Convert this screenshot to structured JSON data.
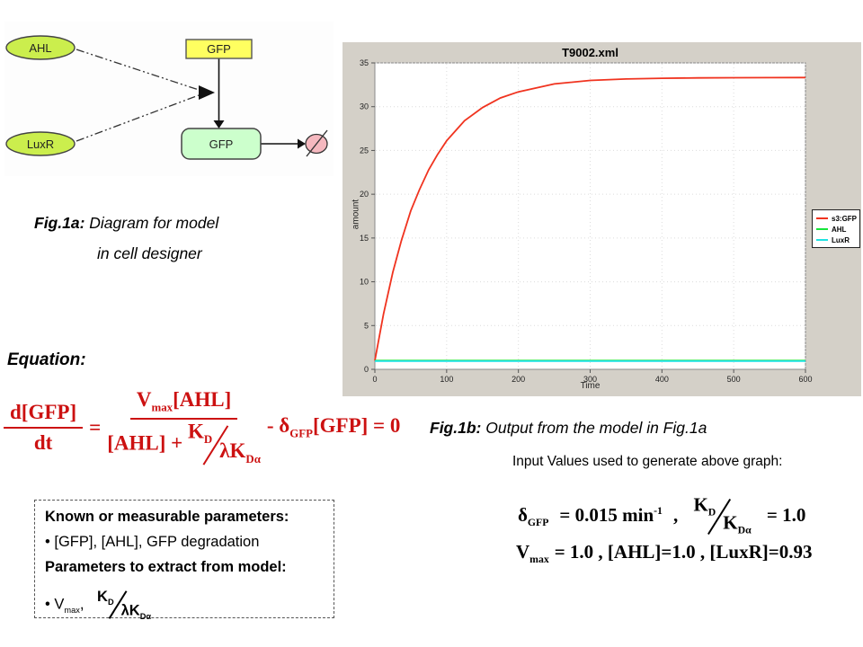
{
  "diagram": {
    "node_ahl": "AHL",
    "node_luxr": "LuxR",
    "node_gfp_gene": "GFP",
    "node_gfp_protein": "GFP",
    "colors": {
      "species_fill": "#cbee4d",
      "gene_fill": "#ffff60",
      "protein_fill": "#ccffcc",
      "degradation_fill": "#f5b8bf"
    }
  },
  "fig1a": {
    "label": "Fig.1a:",
    "text": " Diagram for model",
    "text2": "in cell designer"
  },
  "fig1b": {
    "label": "Fig.1b:",
    "text": " Output from the model in Fig.1a"
  },
  "equation_heading": "Equation:",
  "equation": {
    "color": "#cc1111",
    "lhs_num": "d[GFP]",
    "lhs_den": "dt",
    "equals": "=",
    "num_v": "V",
    "num_v_sub": "max",
    "num_tail": "[AHL]",
    "den_pre": "[AHL] + ",
    "kd": "K",
    "kd_sub": "D",
    "lkd": "λK",
    "lkd_sub": "Dα",
    "minus": "- ",
    "delta": "δ",
    "delta_sub": "GFP",
    "tail": "[GFP] = 0"
  },
  "params_box": {
    "heading1": "Known or measurable parameters:",
    "item1": "• [GFP], [AHL], GFP degradation",
    "heading2": "Parameters to extract from model:",
    "item2_pre": "• V",
    "item2_sub": "max",
    "item2_comma": ",",
    "kd": "K",
    "kd_sub": "D",
    "lkd": "λK",
    "lkd_sub": "Dα"
  },
  "input_values": {
    "heading": "Input Values used to generate above graph:",
    "delta": "δ",
    "delta_sub": "GFP",
    "delta_val": "= 0.015 min",
    "delta_exp": "-1",
    "comma1": ",",
    "kd": "K",
    "kd_sub": "D",
    "kda": "K",
    "kda_sub": "Dα",
    "kd_val": "= 1.0",
    "vmax": "V",
    "vmax_sub": "max",
    "line2_rest": "= 1.0 ,  [AHL]=1.0 ,  [LuxR]=0.93"
  },
  "chart_data": {
    "type": "line",
    "title": "T9002.xml",
    "xlabel": "Time",
    "ylabel": "amount",
    "xlim": [
      0,
      600
    ],
    "ylim": [
      0,
      35
    ],
    "xticks": [
      0,
      100,
      200,
      300,
      400,
      500,
      600
    ],
    "yticks": [
      0,
      5,
      10,
      15,
      20,
      25,
      30,
      35
    ],
    "grid": true,
    "legend_position": "right",
    "frame_color": "#d4d0c8",
    "plot_bg": "#ffffff",
    "series": [
      {
        "name": "s3:GFP",
        "color": "#f0331f",
        "x": [
          0,
          12,
          25,
          37,
          50,
          62,
          75,
          87,
          100,
          125,
          150,
          175,
          200,
          250,
          300,
          350,
          400,
          450,
          500,
          550,
          600
        ],
        "y": [
          1.0,
          6.3,
          11.1,
          14.7,
          18.1,
          20.5,
          22.8,
          24.5,
          26.1,
          28.4,
          29.9,
          31.0,
          31.7,
          32.6,
          33.0,
          33.16,
          33.25,
          33.29,
          33.31,
          33.32,
          33.33
        ]
      },
      {
        "name": "AHL",
        "color": "#16e63a",
        "x": [
          0,
          600
        ],
        "y": [
          1.0,
          1.0
        ]
      },
      {
        "name": "LuxR",
        "color": "#1de2e2",
        "x": [
          0,
          600
        ],
        "y": [
          0.93,
          0.93
        ]
      }
    ]
  }
}
